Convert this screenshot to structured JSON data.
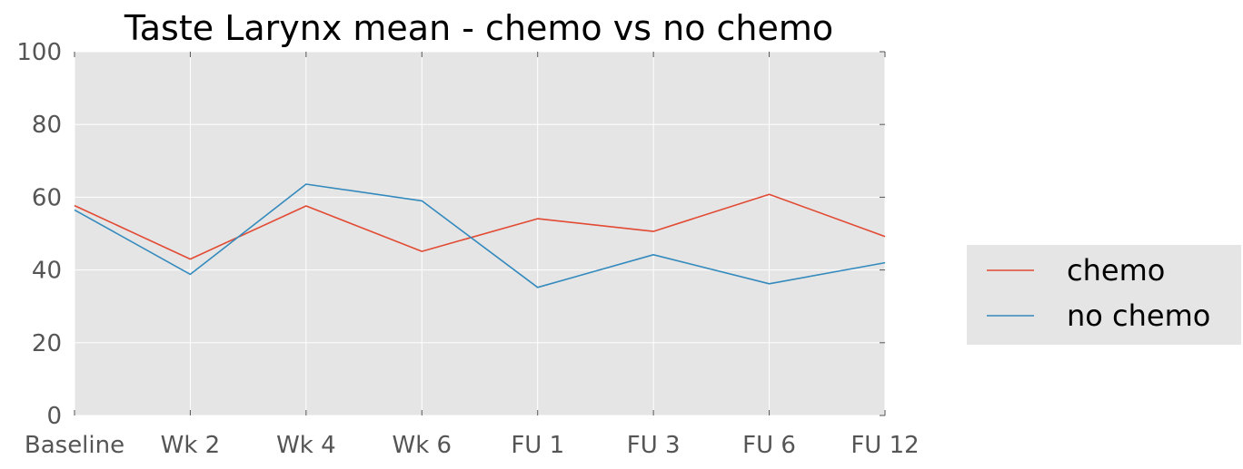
{
  "chart_data": {
    "type": "line",
    "title": "Taste Larynx mean - chemo vs no chemo",
    "xlabel": "",
    "ylabel": "",
    "categories": [
      "Baseline",
      "Wk 2",
      "Wk 4",
      "Wk 6",
      "FU 1",
      "FU 3",
      "FU 6",
      "FU 12"
    ],
    "ylim": [
      0,
      100
    ],
    "yticks": [
      "0",
      "20",
      "40",
      "60",
      "80",
      "100"
    ],
    "grid": true,
    "legend_position": "right",
    "series": [
      {
        "name": "chemo",
        "color": "#e24a33",
        "values": [
          57.7,
          43.0,
          57.6,
          45.1,
          54.1,
          50.6,
          60.8,
          49.2
        ]
      },
      {
        "name": "no chemo",
        "color": "#348abd",
        "values": [
          56.5,
          38.8,
          63.6,
          59.0,
          35.2,
          44.2,
          36.2,
          42.0
        ]
      }
    ],
    "colors": {
      "plot_background": "#e5e5e5",
      "grid": "#ffffff",
      "legend_background": "#e5e5e5"
    }
  }
}
